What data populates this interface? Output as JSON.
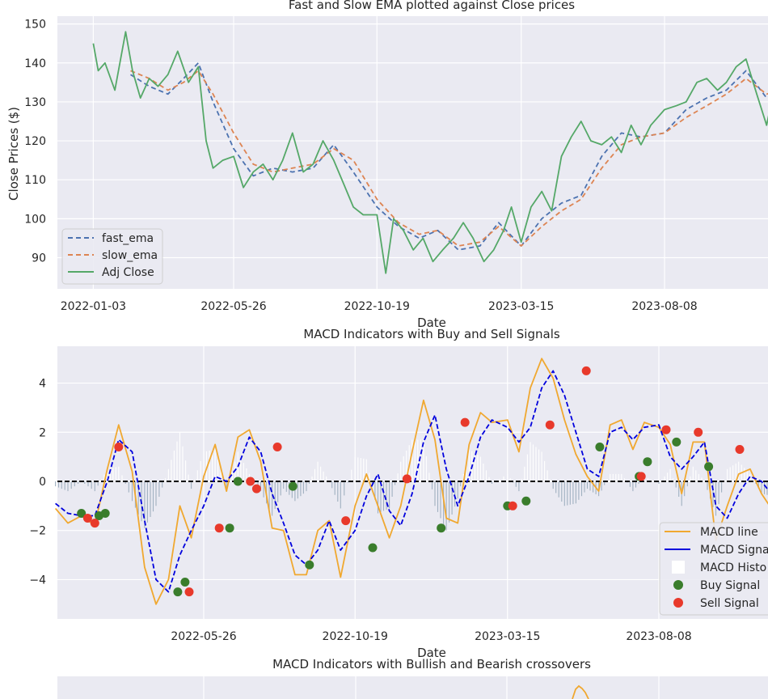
{
  "chart_data": [
    {
      "type": "line",
      "title": "Fast and Slow EMA plotted against Close prices",
      "xlabel": "Date",
      "ylabel": "Close Prices ($)",
      "x_tick_labels": [
        "2022-01-03",
        "2022-05-26",
        "2022-10-19",
        "2023-03-15",
        "2023-08-08"
      ],
      "yticks": [
        90,
        100,
        110,
        120,
        130,
        140,
        150
      ],
      "ylim": [
        82,
        152
      ],
      "grid": true,
      "legend": "lower-left",
      "colors": {
        "fast_ema": "#4c72b0",
        "slow_ema": "#dd8452",
        "adj_close": "#55a868"
      },
      "series": [
        {
          "name": "fast_ema",
          "style": "dashed",
          "x": [
            "2022-02-10",
            "2022-03-01",
            "2022-03-20",
            "2022-04-05",
            "2022-04-20",
            "2022-05-05",
            "2022-05-26",
            "2022-06-15",
            "2022-07-05",
            "2022-07-25",
            "2022-08-15",
            "2022-09-05",
            "2022-09-25",
            "2022-10-19",
            "2022-11-10",
            "2022-12-01",
            "2022-12-20",
            "2023-01-10",
            "2023-02-01",
            "2023-02-20",
            "2023-03-15",
            "2023-04-05",
            "2023-04-25",
            "2023-05-15",
            "2023-06-05",
            "2023-06-25",
            "2023-07-15",
            "2023-08-08",
            "2023-08-30",
            "2023-09-20",
            "2023-10-10",
            "2023-10-30",
            "2023-11-20",
            "2023-12-15"
          ],
          "y": [
            137,
            134,
            132,
            136,
            140,
            130,
            118,
            111,
            113,
            112,
            113,
            119,
            112,
            103,
            98,
            95,
            97,
            92,
            93,
            99,
            93,
            100,
            104,
            106,
            116,
            122,
            121,
            122,
            128,
            131,
            133,
            138,
            131,
            134
          ]
        },
        {
          "name": "slow_ema",
          "style": "dashed",
          "x": [
            "2022-02-10",
            "2022-03-01",
            "2022-03-20",
            "2022-04-05",
            "2022-04-20",
            "2022-05-05",
            "2022-05-26",
            "2022-06-15",
            "2022-07-05",
            "2022-07-25",
            "2022-08-15",
            "2022-09-05",
            "2022-09-25",
            "2022-10-19",
            "2022-11-10",
            "2022-12-01",
            "2022-12-20",
            "2023-01-10",
            "2023-02-01",
            "2023-02-20",
            "2023-03-15",
            "2023-04-05",
            "2023-04-25",
            "2023-05-15",
            "2023-06-05",
            "2023-06-25",
            "2023-07-15",
            "2023-08-08",
            "2023-08-30",
            "2023-09-20",
            "2023-10-10",
            "2023-10-30",
            "2023-11-20",
            "2023-12-15"
          ],
          "y": [
            138,
            136,
            133,
            135,
            138,
            132,
            122,
            114,
            112,
            113,
            114,
            118,
            115,
            105,
            99,
            96,
            97,
            93,
            94,
            98,
            93,
            98,
            102,
            105,
            113,
            119,
            121,
            122,
            126,
            129,
            132,
            136,
            132,
            134
          ]
        },
        {
          "name": "Adj Close",
          "style": "solid",
          "x": [
            "2022-01-03",
            "2022-01-08",
            "2022-01-15",
            "2022-01-25",
            "2022-02-05",
            "2022-02-12",
            "2022-02-20",
            "2022-03-01",
            "2022-03-10",
            "2022-03-20",
            "2022-03-30",
            "2022-04-10",
            "2022-04-20",
            "2022-04-28",
            "2022-05-05",
            "2022-05-15",
            "2022-05-26",
            "2022-06-05",
            "2022-06-15",
            "2022-06-25",
            "2022-07-05",
            "2022-07-15",
            "2022-07-25",
            "2022-08-05",
            "2022-08-15",
            "2022-08-25",
            "2022-09-05",
            "2022-09-15",
            "2022-09-25",
            "2022-10-05",
            "2022-10-19",
            "2022-10-28",
            "2022-11-05",
            "2022-11-15",
            "2022-11-25",
            "2022-12-05",
            "2022-12-15",
            "2022-12-25",
            "2023-01-05",
            "2023-01-15",
            "2023-01-25",
            "2023-02-05",
            "2023-02-15",
            "2023-02-25",
            "2023-03-05",
            "2023-03-15",
            "2023-03-25",
            "2023-04-05",
            "2023-04-15",
            "2023-04-25",
            "2023-05-05",
            "2023-05-15",
            "2023-05-25",
            "2023-06-05",
            "2023-06-15",
            "2023-06-25",
            "2023-07-05",
            "2023-07-15",
            "2023-07-25",
            "2023-08-08",
            "2023-08-20",
            "2023-08-30",
            "2023-09-10",
            "2023-09-20",
            "2023-10-01",
            "2023-10-10",
            "2023-10-20",
            "2023-10-30",
            "2023-11-10",
            "2023-11-20",
            "2023-11-30",
            "2023-12-10",
            "2023-12-20"
          ],
          "y": [
            145,
            138,
            140,
            133,
            148,
            138,
            131,
            136,
            134,
            137,
            143,
            135,
            139,
            120,
            113,
            115,
            116,
            108,
            112,
            114,
            110,
            115,
            122,
            112,
            114,
            120,
            115,
            109,
            103,
            101,
            101,
            86,
            100,
            97,
            92,
            95,
            89,
            92,
            95,
            99,
            95,
            89,
            92,
            97,
            103,
            94,
            103,
            107,
            102,
            116,
            121,
            125,
            120,
            119,
            121,
            117,
            124,
            119,
            124,
            128,
            129,
            130,
            135,
            136,
            133,
            135,
            139,
            141,
            132,
            124,
            136,
            128,
            137
          ]
        }
      ]
    },
    {
      "type": "line",
      "title": "MACD Indicators with Buy and Sell Signals",
      "xlabel": "Date",
      "x_tick_labels": [
        "2022-05-26",
        "2022-10-19",
        "2023-03-15",
        "2023-08-08"
      ],
      "yticks": [
        -4,
        -2,
        0,
        2,
        4
      ],
      "ylim": [
        -5.6,
        5.5
      ],
      "grid": true,
      "legend": "lower-right",
      "colors": {
        "macd": "#f0a830",
        "signal": "#0000dd",
        "histogram": "#a0b0c0",
        "buy": "#3a7d2c",
        "sell": "#e8392b",
        "zero": "#000000"
      },
      "legend_entries": [
        "MACD line",
        "MACD Signa",
        "MACD Histo",
        "Buy Signal",
        "Sell Signal"
      ],
      "x": [
        "2022-01-03",
        "2022-01-15",
        "2022-01-28",
        "2022-02-10",
        "2022-02-22",
        "2022-03-05",
        "2022-03-18",
        "2022-03-30",
        "2022-04-10",
        "2022-04-22",
        "2022-05-03",
        "2022-05-14",
        "2022-05-26",
        "2022-06-06",
        "2022-06-17",
        "2022-06-28",
        "2022-07-09",
        "2022-07-20",
        "2022-07-31",
        "2022-08-11",
        "2022-08-22",
        "2022-09-02",
        "2022-09-13",
        "2022-09-24",
        "2022-10-05",
        "2022-10-19",
        "2022-10-30",
        "2022-11-10",
        "2022-11-21",
        "2022-12-02",
        "2022-12-13",
        "2022-12-24",
        "2023-01-04",
        "2023-01-15",
        "2023-01-26",
        "2023-02-06",
        "2023-02-17",
        "2023-02-28",
        "2023-03-15",
        "2023-03-26",
        "2023-04-06",
        "2023-04-17",
        "2023-04-28",
        "2023-05-09",
        "2023-05-20",
        "2023-05-31",
        "2023-06-11",
        "2023-06-22",
        "2023-07-03",
        "2023-07-14",
        "2023-07-25",
        "2023-08-08",
        "2023-08-19",
        "2023-08-30",
        "2023-09-10",
        "2023-09-21",
        "2023-10-02",
        "2023-10-13",
        "2023-10-24",
        "2023-11-04",
        "2023-11-15",
        "2023-11-26",
        "2023-12-07",
        "2023-12-18"
      ],
      "series": [
        {
          "name": "MACD line",
          "y": [
            -1.1,
            -1.7,
            -1.4,
            -1.8,
            0.5,
            2.3,
            0.4,
            -3.5,
            -5.0,
            -4.0,
            -1.0,
            -2.3,
            0.2,
            1.5,
            -0.4,
            1.8,
            2.1,
            0.8,
            -1.9,
            -2.0,
            -3.8,
            -3.8,
            -2.0,
            -1.6,
            -3.9,
            -1.0,
            0.3,
            -1.0,
            -2.3,
            -1.0,
            1.2,
            3.3,
            1.7,
            -1.5,
            -1.7,
            1.5,
            2.8,
            2.4,
            2.5,
            1.2,
            3.8,
            5.0,
            4.2,
            2.5,
            1.1,
            0.2,
            -0.4,
            2.3,
            2.5,
            1.3,
            2.4,
            2.2,
            1.5,
            -0.5,
            1.6,
            1.6,
            -2.4,
            -1.0,
            0.3,
            0.5,
            -0.5,
            -1.2,
            -1.0,
            -1.5
          ]
        },
        {
          "name": "MACD Signa",
          "y": [
            -0.9,
            -1.3,
            -1.4,
            -1.4,
            0.0,
            1.7,
            1.2,
            -1.6,
            -4.0,
            -4.5,
            -3.0,
            -2.0,
            -1.0,
            0.2,
            0.0,
            0.6,
            1.8,
            1.2,
            -0.5,
            -1.7,
            -3.0,
            -3.4,
            -2.8,
            -1.6,
            -2.8,
            -2.0,
            -0.6,
            0.3,
            -1.2,
            -1.8,
            -0.5,
            1.6,
            2.7,
            0.5,
            -1.0,
            0.2,
            1.8,
            2.5,
            2.2,
            1.6,
            2.2,
            3.8,
            4.5,
            3.5,
            2.0,
            0.5,
            0.2,
            2.0,
            2.2,
            1.7,
            2.2,
            2.3,
            1.0,
            0.5,
            1.0,
            1.6,
            -1.0,
            -1.5,
            -0.5,
            0.2,
            0.0,
            -0.6,
            -0.8,
            -1.0
          ]
        },
        {
          "name": "MACD Histo",
          "note": "bars about the zero line"
        }
      ],
      "buy_signals": {
        "x": [
          "2022-01-28",
          "2022-02-14",
          "2022-02-20",
          "2022-05-01",
          "2022-05-08",
          "2022-06-20",
          "2022-06-28",
          "2022-08-20",
          "2022-09-05",
          "2022-11-05",
          "2023-01-10",
          "2023-03-15",
          "2023-04-02",
          "2023-06-12",
          "2023-07-20",
          "2023-07-28",
          "2023-08-25",
          "2023-09-25",
          "2023-12-05"
        ],
        "y": [
          -1.3,
          -1.4,
          -1.3,
          -4.5,
          -4.1,
          -1.9,
          0.0,
          -0.2,
          -3.4,
          -2.7,
          -1.9,
          -1.0,
          -0.8,
          1.4,
          0.2,
          0.8,
          1.6,
          0.6,
          -1.4
        ]
      },
      "sell_signals": {
        "x": [
          "2022-02-03",
          "2022-02-10",
          "2022-03-05",
          "2022-05-12",
          "2022-06-10",
          "2022-07-10",
          "2022-07-16",
          "2022-08-05",
          "2022-10-10",
          "2022-12-08",
          "2023-02-02",
          "2023-03-20",
          "2023-04-25",
          "2023-05-30",
          "2023-07-22",
          "2023-08-15",
          "2023-09-15",
          "2023-10-25"
        ],
        "y": [
          -1.5,
          -1.7,
          1.4,
          -4.5,
          -1.9,
          0.0,
          -0.3,
          1.4,
          -1.6,
          0.1,
          2.4,
          -1.0,
          2.3,
          4.5,
          0.2,
          2.1,
          2.0,
          1.3
        ]
      },
      "zero_line": 0
    },
    {
      "type": "line",
      "title": "MACD Indicators with Bullish and Bearish crossovers"
    }
  ]
}
